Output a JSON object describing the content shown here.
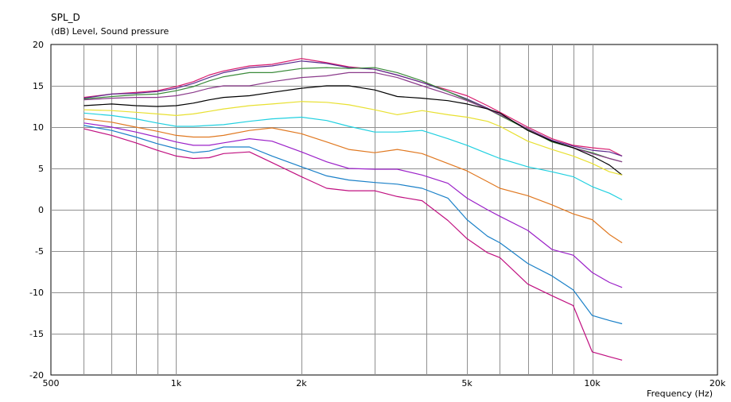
{
  "header": {
    "title": "SPL_D",
    "subtitle": "(dB)  Level, Sound pressure"
  },
  "chart_data": {
    "type": "line",
    "title": "SPL_D",
    "ylabel": "(dB)  Level, Sound pressure",
    "xlabel": "Frequency  (Hz)",
    "x_scale": "log",
    "xlim": [
      500,
      20000
    ],
    "ylim": [
      -20,
      20
    ],
    "grid": true,
    "x_ticks": [
      {
        "value": 500,
        "label": "500"
      },
      {
        "value": 1000,
        "label": "1k"
      },
      {
        "value": 2000,
        "label": "2k"
      },
      {
        "value": 5000,
        "label": "5k"
      },
      {
        "value": 10000,
        "label": "10k"
      },
      {
        "value": 20000,
        "label": "20k"
      }
    ],
    "x_minor_grid": [
      600,
      700,
      800,
      900,
      3000,
      4000,
      6000,
      7000,
      8000,
      9000
    ],
    "y_ticks": [
      {
        "value": 20,
        "label": "20"
      },
      {
        "value": 15,
        "label": "15"
      },
      {
        "value": 10,
        "label": "10"
      },
      {
        "value": 5,
        "label": "5"
      },
      {
        "value": 0,
        "label": "0"
      },
      {
        "value": -5,
        "label": "-5"
      },
      {
        "value": -10,
        "label": "-10"
      },
      {
        "value": -15,
        "label": "-15"
      },
      {
        "value": -20,
        "label": "-20"
      }
    ],
    "x": [
      600,
      700,
      800,
      900,
      1000,
      1100,
      1200,
      1300,
      1500,
      1700,
      2000,
      2300,
      2600,
      3000,
      3400,
      3900,
      4500,
      5000,
      5600,
      6000,
      7000,
      8000,
      9000,
      10000,
      11000,
      11800
    ],
    "series": [
      {
        "color": "#d81b6e",
        "values": [
          13.6,
          14.0,
          14.2,
          14.4,
          14.9,
          15.5,
          16.3,
          16.8,
          17.4,
          17.6,
          18.3,
          17.8,
          17.3,
          17.0,
          16.3,
          15.4,
          14.5,
          13.8,
          12.6,
          11.8,
          10.0,
          8.6,
          7.8,
          7.5,
          7.3,
          6.5
        ]
      },
      {
        "color": "#5c2b8e",
        "values": [
          13.5,
          14.0,
          14.1,
          14.3,
          14.7,
          15.3,
          16.0,
          16.6,
          17.2,
          17.4,
          18.0,
          17.7,
          17.2,
          17.0,
          16.3,
          15.4,
          14.3,
          13.4,
          12.3,
          11.5,
          9.8,
          8.4,
          7.7,
          7.2,
          7.0,
          6.5
        ]
      },
      {
        "color": "#3a8a3a",
        "values": [
          13.4,
          13.7,
          13.9,
          14.0,
          14.4,
          14.9,
          15.6,
          16.1,
          16.6,
          16.6,
          17.1,
          17.2,
          17.1,
          17.2,
          16.6,
          15.6,
          14.3,
          13.3,
          12.2,
          11.4,
          9.7,
          8.2,
          7.5,
          6.9,
          6.2,
          5.8
        ]
      },
      {
        "color": "#8b3a8b",
        "values": [
          13.3,
          13.5,
          13.6,
          13.6,
          13.8,
          14.2,
          14.7,
          15.0,
          15.0,
          15.5,
          16.0,
          16.2,
          16.6,
          16.6,
          16.0,
          15.0,
          14.0,
          13.2,
          12.2,
          11.5,
          9.8,
          8.3,
          7.5,
          6.8,
          6.2,
          5.8
        ]
      },
      {
        "color": "#000000",
        "values": [
          12.6,
          12.8,
          12.6,
          12.5,
          12.6,
          12.9,
          13.3,
          13.6,
          13.8,
          14.2,
          14.7,
          15.0,
          15.0,
          14.5,
          13.7,
          13.5,
          13.2,
          12.8,
          12.2,
          11.7,
          9.6,
          8.3,
          7.5,
          6.5,
          5.4,
          4.2
        ]
      },
      {
        "color": "#e8e030",
        "values": [
          12.1,
          12.0,
          11.8,
          11.6,
          11.4,
          11.6,
          11.9,
          12.2,
          12.6,
          12.8,
          13.1,
          13.0,
          12.7,
          12.1,
          11.5,
          12.0,
          11.5,
          11.2,
          10.7,
          10.1,
          8.3,
          7.3,
          6.5,
          5.6,
          4.6,
          4.2
        ]
      },
      {
        "color": "#20d0e0",
        "values": [
          11.7,
          11.4,
          11.0,
          10.5,
          10.1,
          10.1,
          10.2,
          10.3,
          10.7,
          11.0,
          11.2,
          10.8,
          10.1,
          9.4,
          9.4,
          9.6,
          8.6,
          7.8,
          6.8,
          6.2,
          5.2,
          4.6,
          4.0,
          2.8,
          2.0,
          1.2
        ]
      },
      {
        "color": "#e07820",
        "values": [
          11.0,
          10.6,
          10.0,
          9.5,
          9.0,
          8.8,
          8.8,
          9.0,
          9.6,
          9.9,
          9.2,
          8.2,
          7.3,
          6.9,
          7.3,
          6.8,
          5.6,
          4.7,
          3.4,
          2.6,
          1.7,
          0.6,
          -0.5,
          -1.2,
          -3.0,
          -4.0
        ]
      },
      {
        "color": "#9b20c8",
        "values": [
          10.5,
          10.0,
          9.4,
          8.8,
          8.2,
          7.8,
          7.8,
          8.1,
          8.6,
          8.3,
          7.0,
          5.8,
          5.0,
          4.9,
          4.9,
          4.2,
          3.2,
          1.4,
          0.0,
          -0.8,
          -2.5,
          -4.8,
          -5.5,
          -7.6,
          -8.8,
          -9.4
        ]
      },
      {
        "color": "#1a80c8",
        "values": [
          10.2,
          9.6,
          8.8,
          8.0,
          7.4,
          6.9,
          7.1,
          7.6,
          7.6,
          6.5,
          5.2,
          4.1,
          3.6,
          3.3,
          3.1,
          2.6,
          1.4,
          -1.2,
          -3.2,
          -4.0,
          -6.5,
          -8.0,
          -9.7,
          -12.8,
          -13.4,
          -13.8
        ]
      },
      {
        "color": "#c01080",
        "values": [
          9.8,
          9.0,
          8.1,
          7.2,
          6.5,
          6.2,
          6.3,
          6.8,
          7.0,
          5.7,
          4.0,
          2.6,
          2.3,
          2.3,
          1.6,
          1.1,
          -1.3,
          -3.5,
          -5.2,
          -5.8,
          -9.0,
          -10.4,
          -11.6,
          -17.2,
          -17.8,
          -18.2
        ]
      }
    ]
  }
}
